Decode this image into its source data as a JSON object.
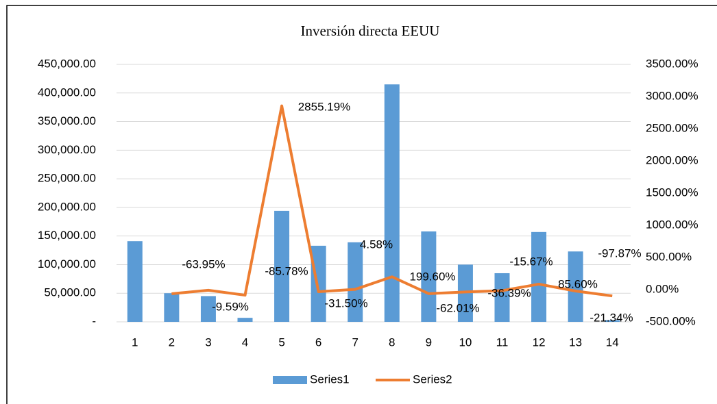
{
  "chart_data": {
    "type": "bar_line",
    "title": "Inversión directa EEUU",
    "categories": [
      "1",
      "2",
      "3",
      "4",
      "5",
      "6",
      "7",
      "8",
      "9",
      "10",
      "11",
      "12",
      "13",
      "14"
    ],
    "series": [
      {
        "name": "Series1",
        "type": "bar",
        "color": "#5b9bd5",
        "values": [
          141000,
          50000,
          45000,
          7000,
          194000,
          133000,
          139000,
          415000,
          158000,
          100000,
          85000,
          157000,
          123000,
          3000
        ]
      },
      {
        "name": "Series2",
        "type": "line",
        "axis": "y2",
        "color": "#ed7d31",
        "values": [
          null,
          -63.95,
          -9.59,
          -85.78,
          2855.19,
          -31.5,
          4.58,
          199.6,
          -62.01,
          -36.39,
          -15.67,
          85.6,
          -21.34,
          -97.87
        ],
        "value_labels": [
          null,
          "-63.95%",
          "-9.59%",
          "-85.78%",
          "2855.19%",
          "-31.50%",
          "4.58%",
          "199.60%",
          "-62.01%",
          "-36.39%",
          "-15.67%",
          "85.60%",
          "-21.34%",
          "-97.87%"
        ],
        "value_label_colors": [
          null,
          "#000000",
          "#000000",
          "#000000",
          "#000000",
          "#000000",
          "#000000",
          "#000000",
          "#000000",
          "#000000",
          "#000000",
          "#000000",
          "#ff0000",
          "#ff0000"
        ]
      }
    ],
    "ylim": [
      0,
      450000
    ],
    "yticks": [
      {
        "value": 0,
        "label": "-"
      },
      {
        "value": 50000,
        "label": "50,000.00"
      },
      {
        "value": 100000,
        "label": "100,000.00"
      },
      {
        "value": 150000,
        "label": "150,000.00"
      },
      {
        "value": 200000,
        "label": "200,000.00"
      },
      {
        "value": 250000,
        "label": "250,000.00"
      },
      {
        "value": 300000,
        "label": "300,000.00"
      },
      {
        "value": 350000,
        "label": "350,000.00"
      },
      {
        "value": 400000,
        "label": "400,000.00"
      },
      {
        "value": 450000,
        "label": "450,000.00"
      }
    ],
    "y2lim": [
      -500,
      3500
    ],
    "y2ticks": [
      {
        "value": -500,
        "label": "-500.00%"
      },
      {
        "value": 0,
        "label": "0.00%"
      },
      {
        "value": 500,
        "label": "500.00%"
      },
      {
        "value": 1000,
        "label": "1000.00%"
      },
      {
        "value": 1500,
        "label": "1500.00%"
      },
      {
        "value": 2000,
        "label": "2000.00%"
      },
      {
        "value": 2500,
        "label": "2500.00%"
      },
      {
        "value": 3000,
        "label": "3000.00%"
      },
      {
        "value": 3500,
        "label": "3500.00%"
      }
    ],
    "grid": true,
    "legend": "bottom"
  }
}
